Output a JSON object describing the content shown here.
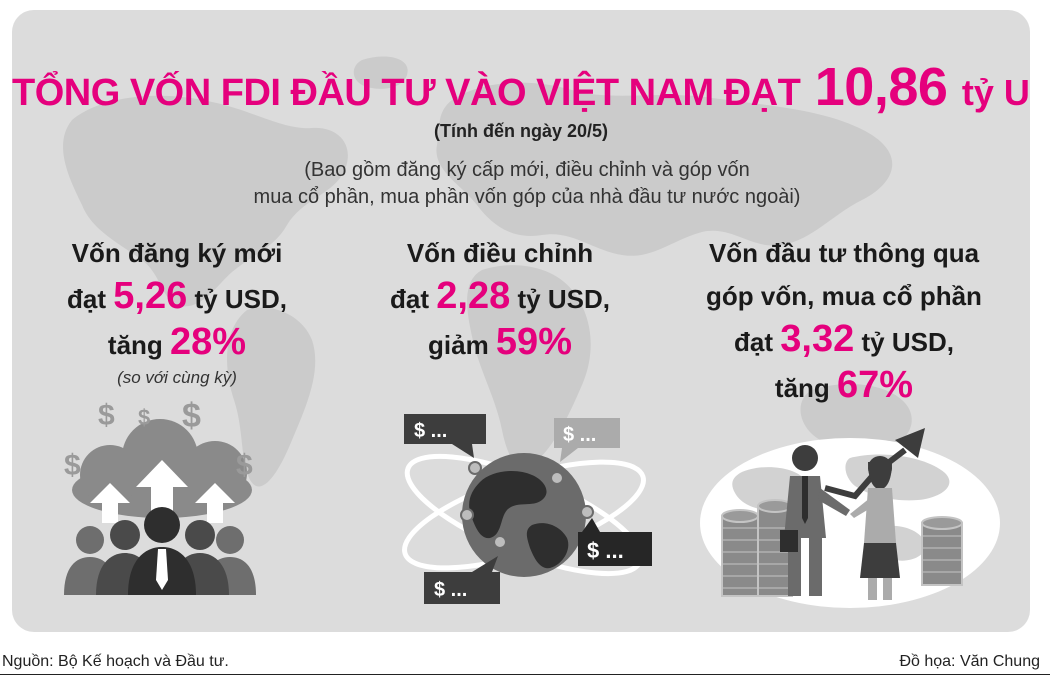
{
  "title": {
    "prefix": "TỔNG VỐN FDI ĐẦU TƯ VÀO VIỆT NAM ĐẠT",
    "value": "10,86",
    "unit": "tỷ USD"
  },
  "date_note": "(Tính đến ngày 20/5)",
  "scope_note": {
    "line1": "(Bao gồm đăng ký cấp mới, điều chỉnh và góp vốn",
    "line2": "mua cổ phần, mua phần vốn góp của nhà đầu tư nước ngoài)"
  },
  "items": [
    {
      "heading": "Vốn đăng ký mới",
      "reach_word": "đạt",
      "value": "5,26",
      "unit": "tỷ USD,",
      "change_word": "tăng",
      "change": "28%",
      "comparison": "(so với cùng kỳ)"
    },
    {
      "heading": "Vốn điều chỉnh",
      "reach_word": "đạt",
      "value": "2,28",
      "unit": "tỷ USD,",
      "change_word": "giảm",
      "change": "59%"
    },
    {
      "heading_line1": "Vốn đầu tư thông qua",
      "heading_line2": "góp vốn, mua cổ phần",
      "reach_word": "đạt",
      "value": "3,32",
      "unit": "tỷ USD,",
      "change_word": "tăng",
      "change": "67%"
    }
  ],
  "bubbles": {
    "top_left": "$ ...",
    "top_right": "$ ...",
    "bottom_right": "$ ...",
    "bottom_left": "$ ..."
  },
  "dollar_sign": "$",
  "footer": {
    "source": "Nguồn: Bộ Kế hoạch và Đầu tư.",
    "credit": "Đồ họa: Văn Chung"
  },
  "colors": {
    "accent": "#e5007d",
    "background_panel": "#dcdcdc",
    "map": "#c9c9c9",
    "illustration_dark": "#3d3d3d",
    "illustration_mid": "#8a8a8a"
  }
}
